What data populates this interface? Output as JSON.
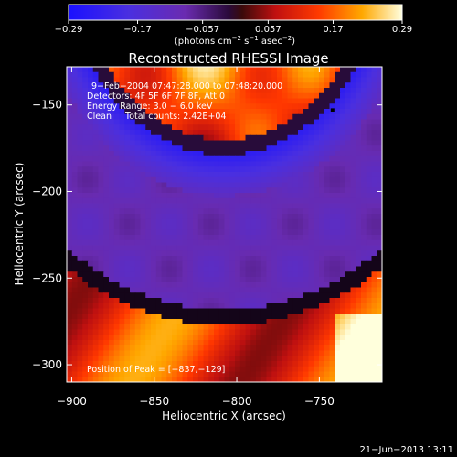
{
  "chart_data": {
    "type": "heatmap",
    "title": "Reconstructed RHESSI Image",
    "xlabel": "Heliocentric X (arcsec)",
    "ylabel": "Heliocentric Y (arcsec)",
    "xlim": [
      -903,
      -712
    ],
    "ylim": [
      -310,
      -128
    ],
    "x_ticks": [
      -900,
      -850,
      -800,
      -750
    ],
    "x_tick_labels": [
      "−900",
      "−850",
      "−800",
      "−750"
    ],
    "y_ticks": [
      -300,
      -250,
      -200,
      -150
    ],
    "y_tick_labels": [
      "−300",
      "−250",
      "−200",
      "−150"
    ],
    "colorbar": {
      "range": [
        -0.29,
        0.29
      ],
      "ticks": [
        -0.29,
        -0.17,
        -0.057,
        0.057,
        0.17,
        0.29
      ],
      "tick_labels": [
        "−0.29",
        "−0.17",
        "−0.057",
        "0.057",
        "0.17",
        "0.29"
      ],
      "unit_label": "(photons cm",
      "unit_exp1": "−2",
      "unit_mid": " s",
      "unit_exp2": "−1",
      "unit_mid2": " asec",
      "unit_exp3": "−2",
      "unit_end": ")"
    },
    "peak_position": [
      -837,
      -129
    ],
    "peak_marker": [
      -742,
      -153
    ],
    "annotations": [
      "9−Feb−2004 07:47:28.000 to 07:48:20.000",
      "Detectors: 4F 5F 6F 7F 8F, Att 0",
      "Energy Range: 3.0 − 6.0 keV",
      "Clean     Total counts: 2.42E+04"
    ],
    "peak_label": "Position of Peak = [−837,−129]",
    "grid": false
  },
  "footer": {
    "timestamp": "21−Jun−2013 13:11"
  }
}
